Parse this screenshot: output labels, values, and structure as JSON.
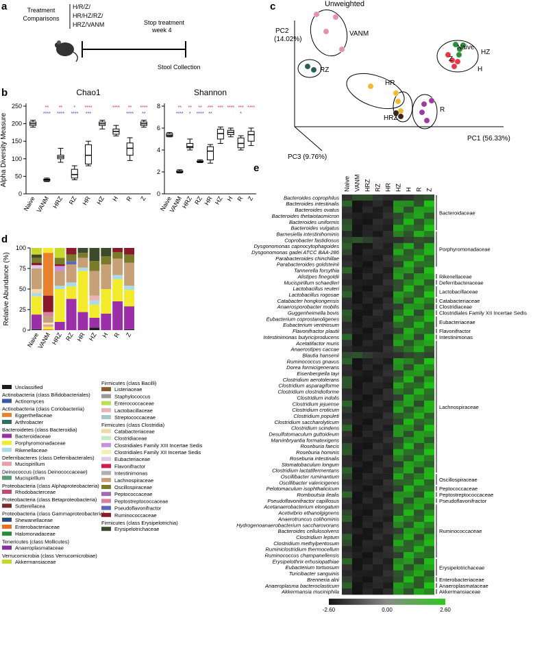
{
  "panel_labels": {
    "a": "a",
    "b": "b",
    "c": "c",
    "d": "d",
    "e": "e"
  },
  "panel_a": {
    "treatment_label": "Treatment\nComparisons",
    "comparisons": [
      "H/R/Z/",
      "HR/HZ/RZ/",
      "HRZ/VANM"
    ],
    "stop_label": "Stop treatment\nweek 4",
    "collection_label": "Stool Collection"
  },
  "chart_data": [
    {
      "id": "chao1",
      "type": "box",
      "title": "Chao1",
      "ylabel": "Alpha Diversity Measure",
      "ylim": [
        0,
        250
      ],
      "yticks": [
        0,
        50,
        100,
        150,
        200,
        250
      ],
      "categories": [
        "Naive",
        "VANM",
        "HRZ",
        "RZ",
        "HR",
        "HZ",
        "H",
        "R",
        "Z"
      ],
      "boxes": [
        {
          "min": 190,
          "q1": 195,
          "median": 200,
          "q3": 205,
          "max": 210
        },
        {
          "min": 35,
          "q1": 37,
          "median": 40,
          "q3": 42,
          "max": 45
        },
        {
          "min": 90,
          "q1": 100,
          "median": 105,
          "q3": 110,
          "max": 130
        },
        {
          "min": 40,
          "q1": 45,
          "median": 55,
          "q3": 70,
          "max": 80
        },
        {
          "min": 80,
          "q1": 85,
          "median": 110,
          "q3": 140,
          "max": 150
        },
        {
          "min": 185,
          "q1": 195,
          "median": 200,
          "q3": 205,
          "max": 210
        },
        {
          "min": 165,
          "q1": 170,
          "median": 178,
          "q3": 185,
          "max": 195
        },
        {
          "min": 95,
          "q1": 110,
          "median": 130,
          "q3": 145,
          "max": 160
        },
        {
          "min": 190,
          "q1": 195,
          "median": 200,
          "q3": 205,
          "max": 210
        }
      ],
      "sig_blue": [
        "",
        "****",
        "****",
        "****",
        "***",
        "",
        "",
        "****",
        "**"
      ],
      "sig_red": [
        "",
        "**",
        "**",
        "*",
        "****",
        "",
        "****",
        "**",
        "****"
      ]
    },
    {
      "id": "shannon",
      "type": "box",
      "title": "Shannon",
      "ylim": [
        0,
        8
      ],
      "yticks": [
        0,
        2,
        4,
        6,
        8
      ],
      "categories": [
        "Naive",
        "VANM",
        "HRZ",
        "RZ",
        "HR",
        "HZ",
        "H",
        "R",
        "Z"
      ],
      "boxes": [
        {
          "min": 5.2,
          "q1": 5.25,
          "median": 5.35,
          "q3": 5.5,
          "max": 5.6
        },
        {
          "min": 1.9,
          "q1": 1.95,
          "median": 2.0,
          "q3": 2.1,
          "max": 2.2
        },
        {
          "min": 4.0,
          "q1": 4.2,
          "median": 4.3,
          "q3": 4.6,
          "max": 5.0
        },
        {
          "min": 2.85,
          "q1": 2.9,
          "median": 2.95,
          "q3": 3.0,
          "max": 3.1
        },
        {
          "min": 2.8,
          "q1": 3.1,
          "median": 3.9,
          "q3": 4.3,
          "max": 4.5
        },
        {
          "min": 4.6,
          "q1": 5.0,
          "median": 5.5,
          "q3": 5.9,
          "max": 6.1
        },
        {
          "min": 5.2,
          "q1": 5.4,
          "median": 5.6,
          "q3": 5.8,
          "max": 6.0
        },
        {
          "min": 4.0,
          "q1": 4.2,
          "median": 4.6,
          "q3": 5.1,
          "max": 5.3
        },
        {
          "min": 4.4,
          "q1": 4.8,
          "median": 5.4,
          "q3": 5.7,
          "max": 6.0
        }
      ],
      "sig_blue": [
        "",
        "****",
        "*",
        "****",
        "**",
        "",
        "",
        "*",
        ""
      ],
      "sig_red": [
        "",
        "**",
        "**",
        "**",
        "***",
        "***",
        "****",
        "***",
        "****"
      ]
    },
    {
      "id": "pcoa",
      "type": "scatter",
      "title": "Unweighted",
      "axis_labels": {
        "pc1": "PC1 (56.33%)",
        "pc2": "PC2\n(14.02%)",
        "pc3": "PC3 (9.76%)"
      },
      "groups": [
        {
          "name": "VANM",
          "color": "#e48fb4",
          "points": [
            [
              462,
              21
            ],
            [
              490,
              25
            ],
            [
              476,
              46
            ],
            [
              499,
              72
            ]
          ]
        },
        {
          "name": "RZ",
          "color": "#2b5c55",
          "points": [
            [
              449,
              97
            ],
            [
              458,
              102
            ]
          ]
        },
        {
          "name": "Naive",
          "color": "#2a8f3a",
          "points": [
            [
              665,
              65
            ],
            [
              671,
              72
            ]
          ]
        },
        {
          "name": "HZ",
          "color": "#2a8f3a",
          "points": [
            [
              676,
              66
            ],
            [
              670,
              80
            ]
          ]
        },
        {
          "name": "Z",
          "color": "#e23a4b",
          "points": [
            [
              654,
              80
            ],
            [
              660,
              88
            ]
          ]
        },
        {
          "name": "H",
          "color": "#e23a4b",
          "points": [
            [
              668,
              90
            ],
            [
              663,
              97
            ]
          ]
        },
        {
          "name": "HR",
          "color": "#efb935",
          "points": [
            [
              541,
              126
            ],
            [
              578,
              136
            ],
            [
              581,
              148
            ],
            [
              585,
              162
            ]
          ]
        },
        {
          "name": "HRZ",
          "color": "#3b2616",
          "points": [
            [
              578,
              165
            ],
            [
              585,
              170
            ]
          ]
        },
        {
          "name": "R",
          "color": "#9a3aa2",
          "points": [
            [
              619,
              152
            ],
            [
              630,
              147
            ],
            [
              616,
              164
            ],
            [
              623,
              176
            ]
          ]
        }
      ],
      "group_labels": [
        "VANM",
        "RZ",
        "HZ",
        "Naive",
        "Z",
        "H",
        "HR",
        "HRZ",
        "R"
      ]
    },
    {
      "id": "stacked",
      "type": "bar",
      "ylabel": "Relative Abundance (%)",
      "ylim": [
        0,
        100
      ],
      "yticks": [
        0,
        25,
        50,
        75,
        100
      ],
      "categories": [
        "Naive",
        "VANM",
        "HRZ",
        "RZ",
        "HR",
        "HZ",
        "H",
        "R",
        "Z"
      ]
    },
    {
      "id": "heatmap",
      "type": "heatmap",
      "columns": [
        "Naive",
        "VANM",
        "HRZ",
        "RZ",
        "HR",
        "HZ",
        "H",
        "R",
        "Z"
      ],
      "colorbar": {
        "min": "-2.60",
        "mid": "0.00",
        "max": "2.60"
      },
      "rows": [
        "Bacteroides coprophilus",
        "Bacteroides intestinalis",
        "Bacteroides ovatus",
        "Bacteroides thetaiotaomicron",
        "Bacteroides uniformis",
        "Bacteroides vulgatus",
        "Barnesiella intestinihominis",
        "Coprobacter fastidiosus",
        "Dysgonomonas capnocytophagoides",
        "Dysgonomonas gadei ATCC BAA-286",
        "Parabacteroides chinchillae",
        "Parabacteroides goldsteinii",
        "Tannerella forsythia",
        "Alistipes finegoldii",
        "Mucispirillum schaedleri",
        "Lactobacillus reuteri",
        "Lactobacillus rogosae",
        "Catabacter hongkongensis",
        "Anaerosporobacter mobilis",
        "Guggenheimella bovis",
        "Eubacterium coprostanoligenes",
        "Eubacterium ventriosum",
        "Flavonifractor plautii",
        "Intestinimonas butyriciproducens",
        "Acetatifactor muris",
        "Anaerostipes caccae",
        "Blautia hansenii",
        "Ruminococcus gnavus",
        "Dorea formicigenerans",
        "Eisenbergiella tayi",
        "Clostridium aerotolerans",
        "Clostridium asparagiforme",
        "Clostridium clostridioforme",
        "Clostridium indolis",
        "Clostridium jejuense",
        "Clostridium croticum",
        "Clostridium populeti",
        "Clostridium saccharolyticum",
        "Clostridium scindens",
        "Desulfotomaculum guttoideum",
        "Marvinbryantia formatexigens",
        "Roseburia faecis",
        "Roseburia hominis",
        "Roseburia intestinalis",
        "Stomatobaculum longum",
        "Clostridium lactatifermentans",
        "Oscillibacter ruminantium",
        "Oscillibacter valericigenes",
        "Pelotomaculum isophthalicicum",
        "Romboutsia ilealis",
        "Pseudoflavonifractor capillosus",
        "Acetanaerobacterium elongatum",
        "Acetivibrio ethanolgignens",
        "Anaerotruncus colihominis",
        "Hydrogenoanaerobacterium saccharovorans",
        "Bacteroides cellulosolvens",
        "Clostridium leptum",
        "Clostridium methylpentosum",
        "Ruminiclostridium thermocellum",
        "Ruminococcus champanellensis",
        "Erysipelothrix erhusiopathiae",
        "Eubacterium tortuosum",
        "Turicibacter sanguinis",
        "Brenneria alni",
        "Anaeroplasma bacteroclasticum",
        "Akkermansia muciniphila"
      ],
      "families": [
        {
          "name": "Bacteroidaceae",
          "start": 0,
          "end": 5
        },
        {
          "name": "Porphyromonadaceae",
          "start": 6,
          "end": 11
        },
        {
          "name": "Rikenellaceae",
          "start": 13,
          "end": 13
        },
        {
          "name": "Deferribacteraceae",
          "start": 14,
          "end": 14
        },
        {
          "name": "Lactobacillaceae",
          "start": 15,
          "end": 16
        },
        {
          "name": "Catabacteriaceae",
          "start": 17,
          "end": 17
        },
        {
          "name": "Clostridiaceae",
          "start": 18,
          "end": 18
        },
        {
          "name": "Clostridiales Family XII Incertae Sedis",
          "start": 19,
          "end": 19
        },
        {
          "name": "Eubacteriaceae",
          "start": 20,
          "end": 21
        },
        {
          "name": "Flavonifractor",
          "start": 22,
          "end": 22
        },
        {
          "name": "Intestinimonas",
          "start": 23,
          "end": 23
        },
        {
          "name": "Lachnospiraceae",
          "start": 24,
          "end": 45
        },
        {
          "name": "Oscillospiraceae",
          "start": 46,
          "end": 47
        },
        {
          "name": "Peptococcaceae",
          "start": 48,
          "end": 48
        },
        {
          "name": "Peptostreptococcaceae",
          "start": 49,
          "end": 49
        },
        {
          "name": "Pseudoflavonifractor",
          "start": 50,
          "end": 50
        },
        {
          "name": "Ruminococcaceae",
          "start": 51,
          "end": 59
        },
        {
          "name": "Erysipelotrichaceae",
          "start": 60,
          "end": 62
        },
        {
          "name": "Enterobacteriaceae",
          "start": 63,
          "end": 63
        },
        {
          "name": "Anaeroplasmataceae",
          "start": 64,
          "end": 64
        },
        {
          "name": "Akkermansiaceae",
          "start": 65,
          "end": 65
        }
      ]
    }
  ],
  "legend": {
    "left": [
      {
        "type": "item",
        "label": "Unclassified",
        "color": "#1c1c1c"
      },
      {
        "type": "header",
        "label": "Actinobacteria (class Bifidobacteriales)"
      },
      {
        "type": "item",
        "label": "Actinomyces",
        "color": "#3a5aa8"
      },
      {
        "type": "header",
        "label": "Actinobacteria (class Coriobacteriia)"
      },
      {
        "type": "item",
        "label": "Eggerthellaceae",
        "color": "#e8812e"
      },
      {
        "type": "item",
        "label": "Arthrobacter",
        "color": "#2f6e63"
      },
      {
        "type": "header",
        "label": "Bacteroidetes (class Bacteroidia)"
      },
      {
        "type": "item",
        "label": "Bacteroidaceae",
        "color": "#9b2fa8"
      },
      {
        "type": "item",
        "label": "Porphyromonadaceae",
        "color": "#f2ea2a"
      },
      {
        "type": "item",
        "label": "Rikenellaceae",
        "color": "#a9dbe8"
      },
      {
        "type": "header",
        "label": "Deferribacteres (class Deferribacterales)"
      },
      {
        "type": "item",
        "label": "Mucispirillum",
        "color": "#e8a0a4"
      },
      {
        "type": "header",
        "label": "Deinococcus (class Deinococcaceae)"
      },
      {
        "type": "item",
        "label": "Mucispirillum",
        "color": "#5a9a78"
      },
      {
        "type": "header",
        "label": "Proteobacteria (class Alphaproteobacteria)"
      },
      {
        "type": "item",
        "label": "Rhodobacterceae",
        "color": "#c8476e"
      },
      {
        "type": "header",
        "label": "Proteobacteria (class Betaproteobacteria)"
      },
      {
        "type": "item",
        "label": "Sutterellacea",
        "color": "#7c2b2b"
      },
      {
        "type": "header",
        "label": "Proteobacteria (class Gammaproteobacteria)"
      },
      {
        "type": "item",
        "label": "Shewanellaceae",
        "color": "#2b4c7a"
      },
      {
        "type": "item",
        "label": "Enterobacteriaceae",
        "color": "#e8721e"
      },
      {
        "type": "item",
        "label": "Halomonadaceae",
        "color": "#2a8a3a"
      },
      {
        "type": "header",
        "label": "Tenericutes (class Mollicutes)"
      },
      {
        "type": "item",
        "label": "Anaeroplasmataceae",
        "color": "#8a2fa0"
      },
      {
        "type": "header",
        "label": "Verrucomicrobia (class Verrucomicrobiae)"
      },
      {
        "type": "item",
        "label": "Akkermansiaceae",
        "color": "#c8d82a"
      }
    ],
    "right": [
      {
        "type": "header",
        "label": "Firmicutes (class Bacilli)"
      },
      {
        "type": "item",
        "label": "Listeriaceae",
        "color": "#8a5a2a"
      },
      {
        "type": "item",
        "label": "Staphylococcus",
        "color": "#9a9a9a"
      },
      {
        "type": "item",
        "label": "Enterococcaceae",
        "color": "#b8e05a"
      },
      {
        "type": "item",
        "label": "Lactobacillaceae",
        "color": "#e8b4b4"
      },
      {
        "type": "item",
        "label": "Streptococcaceae",
        "color": "#a8c8c8"
      },
      {
        "type": "header",
        "label": "Firmicutes (class Clostridia)"
      },
      {
        "type": "item",
        "label": "Catabacteriaceae",
        "color": "#f2d8a8"
      },
      {
        "type": "item",
        "label": "Clostridiaceae",
        "color": "#c8e8c8"
      },
      {
        "type": "item",
        "label": "Clostridiales Family XIII Incertae Sedis",
        "color": "#c890d8"
      },
      {
        "type": "item",
        "label": "Clostridiales Family XII Incertae Sedis",
        "color": "#f5f0b0"
      },
      {
        "type": "item",
        "label": "Eubacteriaceae",
        "color": "#e0c8e8"
      },
      {
        "type": "item",
        "label": "Flavonifractor",
        "color": "#d01a4a"
      },
      {
        "type": "item",
        "label": "Intestinimonas",
        "color": "#b0b0b0"
      },
      {
        "type": "item",
        "label": "Lachnospiraceae",
        "color": "#c8a078"
      },
      {
        "type": "item",
        "label": "Oscillospiraceae",
        "color": "#7a7a2a"
      },
      {
        "type": "item",
        "label": "Peptococcaceae",
        "color": "#a06ab4"
      },
      {
        "type": "item",
        "label": "Peptostreptococcaceae",
        "color": "#d880a0"
      },
      {
        "type": "item",
        "label": "Pseudoflavonifractor",
        "color": "#5a6ab8"
      },
      {
        "type": "item",
        "label": "Ruminococcaceae",
        "color": "#8a1a2a"
      },
      {
        "type": "header",
        "label": "Firmicutes (class Erysipelotrichia)"
      },
      {
        "type": "item",
        "label": "Erysipelotrichaceae",
        "color": "#3a4a2a"
      }
    ]
  }
}
